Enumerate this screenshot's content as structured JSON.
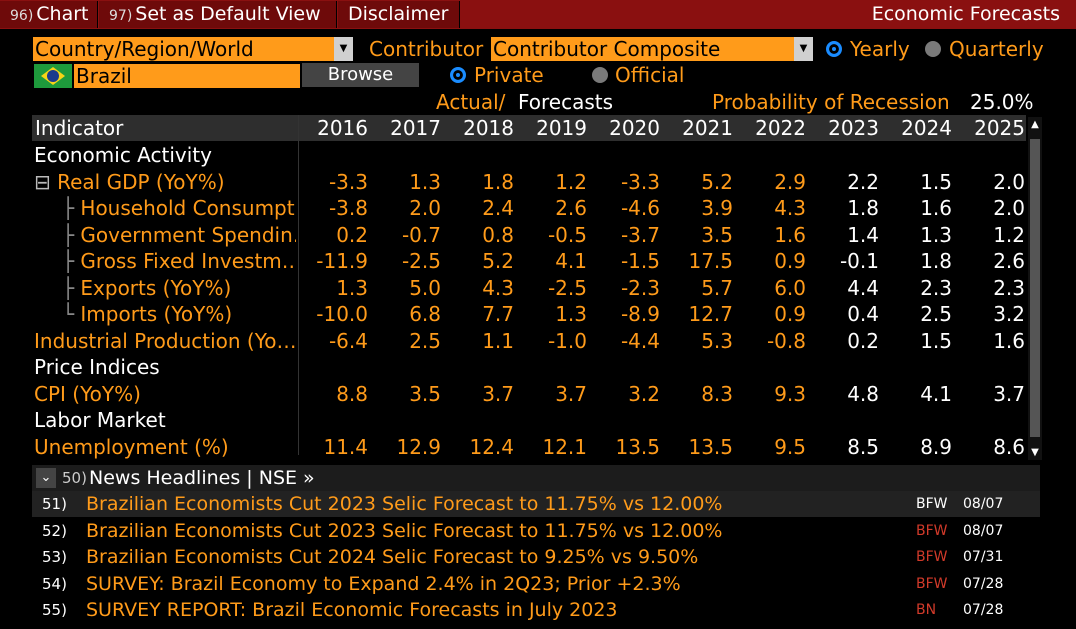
{
  "topbar": {
    "buttons": [
      {
        "num": "96)",
        "label": "Chart"
      },
      {
        "num": "97)",
        "label": "Set as Default View"
      },
      {
        "num": "",
        "label": "Disclaimer"
      }
    ],
    "title": "Economic Forecasts"
  },
  "controls": {
    "region_field": "Country/Region/World",
    "contributor_label": "Contributor",
    "contributor_field": "Contributor Composite",
    "yearly": "Yearly",
    "quarterly": "Quarterly",
    "country": "Brazil",
    "browse": "Browse",
    "private": "Private",
    "official": "Official",
    "actual_label": "Actual/",
    "forecasts_label": "Forecasts",
    "recession_label": "Probability of Recession",
    "recession_value": "25.0%"
  },
  "table": {
    "indicator_header": "Indicator",
    "years": [
      "2016",
      "2017",
      "2018",
      "2019",
      "2020",
      "2021",
      "2022",
      "2023",
      "2024",
      "2025"
    ],
    "rows": [
      {
        "type": "section",
        "label": "Economic Activity"
      },
      {
        "type": "data",
        "label": "Real GDP (YoY%)",
        "prefix": "⊟",
        "values": [
          "-3.3",
          "1.3",
          "1.8",
          "1.2",
          "-3.3",
          "5.2",
          "2.9",
          "2.2",
          "1.5",
          "2.0"
        ]
      },
      {
        "type": "data",
        "label": "Household Consumpt…",
        "child": true,
        "values": [
          "-3.8",
          "2.0",
          "2.4",
          "2.6",
          "-4.6",
          "3.9",
          "4.3",
          "1.8",
          "1.6",
          "2.0"
        ]
      },
      {
        "type": "data",
        "label": "Government Spendin…",
        "child": true,
        "values": [
          "0.2",
          "-0.7",
          "0.8",
          "-0.5",
          "-3.7",
          "3.5",
          "1.6",
          "1.4",
          "1.3",
          "1.2"
        ]
      },
      {
        "type": "data",
        "label": "Gross Fixed Investm…",
        "child": true,
        "values": [
          "-11.9",
          "-2.5",
          "5.2",
          "4.1",
          "-1.5",
          "17.5",
          "0.9",
          "-0.1",
          "1.8",
          "2.6"
        ]
      },
      {
        "type": "data",
        "label": "Exports (YoY%)",
        "child": true,
        "values": [
          "1.3",
          "5.0",
          "4.3",
          "-2.5",
          "-2.3",
          "5.7",
          "6.0",
          "4.4",
          "2.3",
          "2.3"
        ]
      },
      {
        "type": "data",
        "label": "Imports (YoY%)",
        "child": true,
        "last": true,
        "values": [
          "-10.0",
          "6.8",
          "7.7",
          "1.3",
          "-8.9",
          "12.7",
          "0.9",
          "0.4",
          "2.5",
          "3.2"
        ]
      },
      {
        "type": "data",
        "label": "Industrial Production (Yo…",
        "values": [
          "-6.4",
          "2.5",
          "1.1",
          "-1.0",
          "-4.4",
          "5.3",
          "-0.8",
          "0.2",
          "1.5",
          "1.6"
        ]
      },
      {
        "type": "section",
        "label": "Price Indices"
      },
      {
        "type": "data",
        "label": "CPI (YoY%)",
        "values": [
          "8.8",
          "3.5",
          "3.7",
          "3.7",
          "3.2",
          "8.3",
          "9.3",
          "4.8",
          "4.1",
          "3.7"
        ]
      },
      {
        "type": "section",
        "label": "Labor Market"
      },
      {
        "type": "data",
        "label": "Unemployment (%)",
        "values": [
          "11.4",
          "12.9",
          "12.4",
          "12.1",
          "13.5",
          "13.5",
          "9.5",
          "8.5",
          "8.9",
          "8.6"
        ]
      }
    ]
  },
  "news": {
    "header_num": "50)",
    "header_label": "News Headlines | NSE »",
    "items": [
      {
        "num": "51)",
        "headline": "Brazilian Economists Cut 2023 Selic Forecast to 11.75% vs 12.00%",
        "source": "BFW",
        "date": "08/07"
      },
      {
        "num": "52)",
        "headline": "Brazilian Economists Cut 2023 Selic Forecast to 11.75% vs 12.00%",
        "source": "BFW",
        "date": "08/07"
      },
      {
        "num": "53)",
        "headline": "Brazilian Economists Cut 2024 Selic Forecast to 9.25% vs 9.50%",
        "source": "BFW",
        "date": "07/31"
      },
      {
        "num": "54)",
        "headline": "SURVEY: Brazil Economy to Expand 2.4% in 2Q23; Prior +2.3%",
        "source": "BFW",
        "date": "07/28"
      },
      {
        "num": "55)",
        "headline": "SURVEY REPORT: Brazil Economic Forecasts in July 2023",
        "source": "BN",
        "date": "07/28"
      }
    ]
  },
  "colors": {
    "accent": "#ff9b1a",
    "topbar": "#8a1010",
    "radio": "#1a8cff"
  }
}
